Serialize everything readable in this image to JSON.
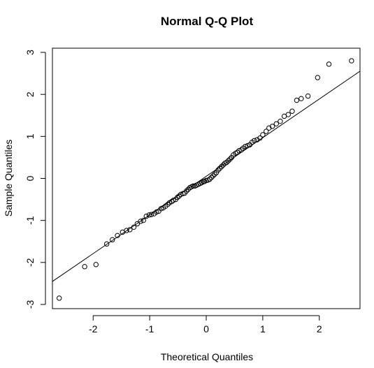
{
  "chart_data": {
    "type": "scatter",
    "title": "Normal Q-Q Plot",
    "xlabel": "Theoretical Quantiles",
    "ylabel": "Sample Quantiles",
    "xlim": [
      -2.72,
      2.72
    ],
    "ylim": [
      -3.1,
      3.1
    ],
    "x_ticks": [
      -2,
      -1,
      0,
      1,
      2
    ],
    "y_ticks": [
      -3,
      -2,
      -1,
      0,
      1,
      2,
      3
    ],
    "x_tick_labels": [
      "-2",
      "-1",
      "0",
      "1",
      "2"
    ],
    "y_tick_labels": [
      "-3",
      "-2",
      "-1",
      "0",
      "1",
      "2",
      "3"
    ],
    "grid": false,
    "legend": "none",
    "marker": "open-circle",
    "colors": {
      "points": "#000000",
      "line": "#000000",
      "axes": "#000000",
      "background": "#ffffff"
    },
    "reference_line": {
      "intercept": 0.05,
      "slope": 0.92
    },
    "points": [
      [
        -2.6,
        -2.85
      ],
      [
        -2.15,
        -2.1
      ],
      [
        -1.95,
        -2.05
      ],
      [
        -1.76,
        -1.56
      ],
      [
        -1.66,
        -1.46
      ],
      [
        -1.57,
        -1.36
      ],
      [
        -1.48,
        -1.28
      ],
      [
        -1.41,
        -1.24
      ],
      [
        -1.35,
        -1.22
      ],
      [
        -1.28,
        -1.16
      ],
      [
        -1.22,
        -1.08
      ],
      [
        -1.16,
        -1.02
      ],
      [
        -1.11,
        -1.0
      ],
      [
        -1.06,
        -0.9
      ],
      [
        -1.01,
        -0.87
      ],
      [
        -0.97,
        -0.86
      ],
      [
        -0.92,
        -0.84
      ],
      [
        -0.88,
        -0.8
      ],
      [
        -0.84,
        -0.78
      ],
      [
        -0.8,
        -0.72
      ],
      [
        -0.76,
        -0.7
      ],
      [
        -0.72,
        -0.66
      ],
      [
        -0.68,
        -0.62
      ],
      [
        -0.65,
        -0.58
      ],
      [
        -0.61,
        -0.55
      ],
      [
        -0.58,
        -0.52
      ],
      [
        -0.54,
        -0.5
      ],
      [
        -0.51,
        -0.45
      ],
      [
        -0.48,
        -0.42
      ],
      [
        -0.45,
        -0.38
      ],
      [
        -0.41,
        -0.36
      ],
      [
        -0.38,
        -0.35
      ],
      [
        -0.35,
        -0.3
      ],
      [
        -0.32,
        -0.26
      ],
      [
        -0.29,
        -0.22
      ],
      [
        -0.26,
        -0.2
      ],
      [
        -0.23,
        -0.18
      ],
      [
        -0.2,
        -0.18
      ],
      [
        -0.17,
        -0.16
      ],
      [
        -0.14,
        -0.14
      ],
      [
        -0.11,
        -0.12
      ],
      [
        -0.08,
        -0.1
      ],
      [
        -0.05,
        -0.08
      ],
      [
        -0.03,
        -0.07
      ],
      [
        0.0,
        -0.05
      ],
      [
        0.03,
        -0.04
      ],
      [
        0.06,
        -0.02
      ],
      [
        0.09,
        0.02
      ],
      [
        0.12,
        0.06
      ],
      [
        0.15,
        0.1
      ],
      [
        0.18,
        0.14
      ],
      [
        0.21,
        0.2
      ],
      [
        0.24,
        0.24
      ],
      [
        0.27,
        0.28
      ],
      [
        0.3,
        0.32
      ],
      [
        0.33,
        0.36
      ],
      [
        0.36,
        0.38
      ],
      [
        0.39,
        0.42
      ],
      [
        0.42,
        0.46
      ],
      [
        0.45,
        0.5
      ],
      [
        0.48,
        0.56
      ],
      [
        0.52,
        0.6
      ],
      [
        0.55,
        0.62
      ],
      [
        0.58,
        0.66
      ],
      [
        0.62,
        0.68
      ],
      [
        0.65,
        0.72
      ],
      [
        0.69,
        0.76
      ],
      [
        0.73,
        0.78
      ],
      [
        0.77,
        0.8
      ],
      [
        0.81,
        0.86
      ],
      [
        0.85,
        0.9
      ],
      [
        0.9,
        0.92
      ],
      [
        0.95,
        0.96
      ],
      [
        1.0,
        1.04
      ],
      [
        1.06,
        1.12
      ],
      [
        1.11,
        1.2
      ],
      [
        1.17,
        1.24
      ],
      [
        1.24,
        1.3
      ],
      [
        1.31,
        1.36
      ],
      [
        1.38,
        1.48
      ],
      [
        1.45,
        1.52
      ],
      [
        1.52,
        1.6
      ],
      [
        1.6,
        1.86
      ],
      [
        1.68,
        1.9
      ],
      [
        1.8,
        1.96
      ],
      [
        1.97,
        2.4
      ],
      [
        2.17,
        2.72
      ],
      [
        2.57,
        2.8
      ]
    ]
  }
}
